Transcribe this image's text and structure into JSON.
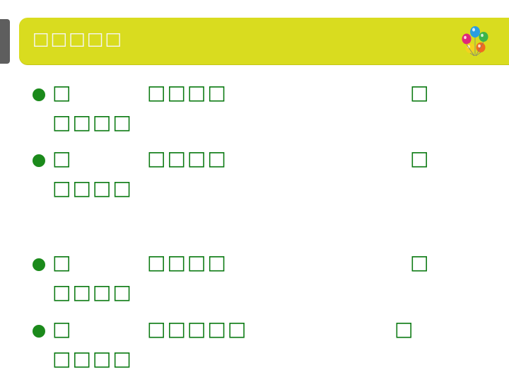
{
  "slide": {
    "title": "□□□□□",
    "items": [
      {
        "part1": "□",
        "part2": "□□□□",
        "part3": "□",
        "line2": "□□□□"
      },
      {
        "part1": "□",
        "part2": "□□□□",
        "part3": "□",
        "line2": "□□□□"
      },
      {
        "part1": "□",
        "part2": "□□□□",
        "part3": "□",
        "line2": "□□□□"
      },
      {
        "part1": "□",
        "part2": "□□□□□",
        "part3": "□",
        "line2": "□□□□"
      }
    ]
  },
  "colors": {
    "title_bar": "#d9dc1f",
    "text": "#0b7a12",
    "bullet": "#1b8a1b"
  }
}
